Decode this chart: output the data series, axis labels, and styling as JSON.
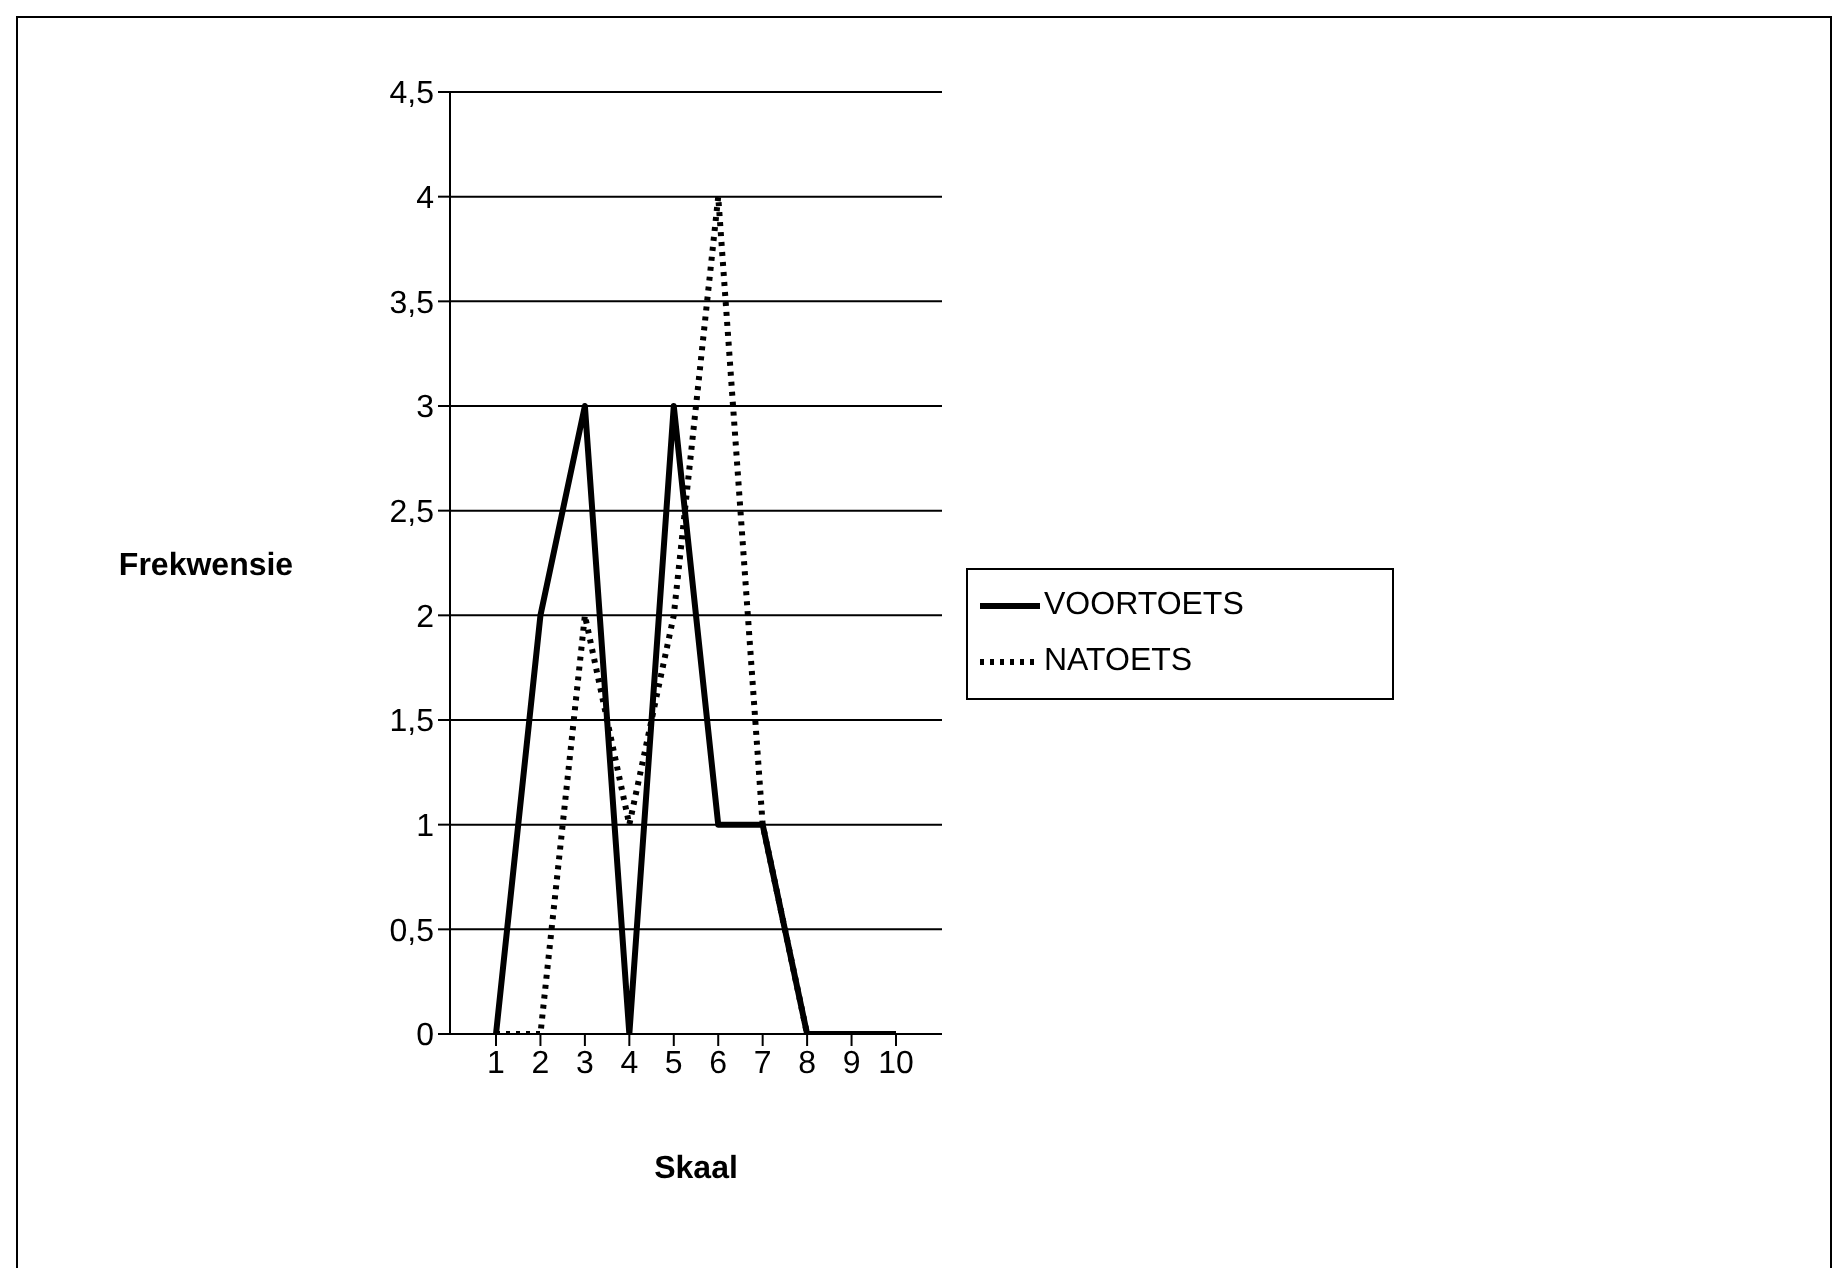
{
  "chart_data": {
    "type": "line",
    "xlabel": "Skaal",
    "ylabel": "Frekwensie",
    "categories": [
      "1",
      "2",
      "3",
      "4",
      "5",
      "6",
      "7",
      "8",
      "9",
      "10"
    ],
    "series": [
      {
        "name": "VOORTOETS",
        "color": "#000000",
        "line_style": "solid",
        "values": [
          0,
          2,
          3,
          0,
          3,
          1,
          1,
          0,
          0,
          0
        ]
      },
      {
        "name": "NATOETS",
        "color": "#000000",
        "line_style": "dotted",
        "values": [
          0,
          0,
          2,
          1,
          2,
          4,
          1,
          0,
          0,
          0
        ]
      }
    ],
    "ylim": [
      0,
      4.5
    ],
    "yticks": [
      0,
      {
        "value": 0.5,
        "label": "0,5"
      },
      1,
      {
        "value": 1.5,
        "label": "1,5"
      },
      2,
      {
        "value": 2.5,
        "label": "2,5"
      },
      3,
      {
        "value": 3.5,
        "label": "3,5"
      },
      4,
      {
        "value": 4.5,
        "label": "4,5"
      }
    ],
    "grid": "y",
    "legend": "right",
    "marker": "none"
  }
}
